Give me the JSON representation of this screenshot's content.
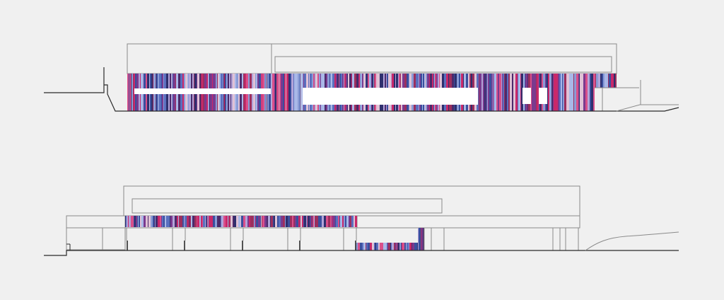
{
  "drawing": {
    "type": "architectural-elevations",
    "elevation_count": 2,
    "colors": {
      "background": "#f0f0f0",
      "line": "#8a8a8a",
      "ground": "#2a2a2a",
      "opening": "#ffffff",
      "cladding_palette": [
        "#c9286a",
        "#7a3a8f",
        "#3a4f9e",
        "#2f2f6e",
        "#8a9bd6",
        "#b3a4d9",
        "#d94f8a",
        "#5a6fbf",
        "#e0c2d6",
        "#9c2f5e",
        "#4b2a6b",
        "#a9b8e8"
      ]
    }
  }
}
